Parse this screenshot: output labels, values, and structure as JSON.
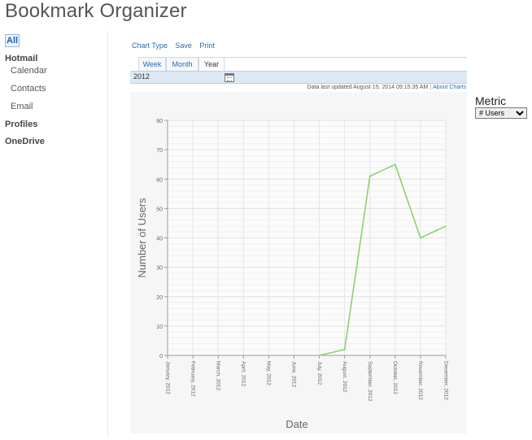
{
  "app": {
    "title": "Bookmark Organizer"
  },
  "sidebar": {
    "all": "All",
    "hotmail": "Hotmail",
    "calendar": "Calendar",
    "contacts": "Contacts",
    "email": "Email",
    "profiles": "Profiles",
    "onedrive": "OneDrive"
  },
  "toolbar": {
    "chart_type": "Chart Type",
    "save": "Save",
    "print": "Print"
  },
  "tabs": [
    {
      "label": "Week"
    },
    {
      "label": "Month"
    },
    {
      "label": "Year",
      "active": true
    }
  ],
  "date_selector": {
    "value": "2012",
    "icon": "calendar-icon"
  },
  "status": {
    "updated": "Data last updated August 15, 2014 09:15:35 AM",
    "about_link": "About Charts"
  },
  "metric": {
    "label": "Metric",
    "selected": "# Users"
  },
  "chart_data": {
    "type": "line",
    "xlabel": "Date",
    "ylabel": "Number of Users",
    "categories": [
      "January, 2012",
      "February, 2012",
      "March, 2012",
      "April, 2012",
      "May, 2012",
      "June, 2012",
      "July, 2012",
      "August, 2012",
      "September, 2012",
      "October, 2012",
      "November, 2012",
      "December, 2012"
    ],
    "values": [
      null,
      null,
      null,
      null,
      null,
      null,
      0,
      2,
      61,
      65,
      40,
      44
    ],
    "ylim": [
      0,
      80
    ],
    "yticks": [
      0,
      10,
      20,
      30,
      40,
      50,
      60,
      70,
      80
    ],
    "grid": true,
    "line_color": "#8fd06f"
  }
}
